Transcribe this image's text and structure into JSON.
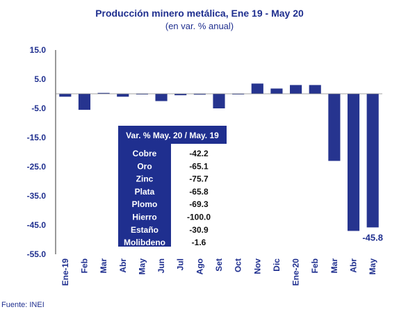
{
  "chart_data": {
    "type": "bar",
    "title": "Producción minero metálica, Ene 19 - May 20",
    "subtitle": "(en var. % anual)",
    "categories": [
      "Ene-19",
      "Feb",
      "Mar",
      "Abr",
      "May",
      "Jun",
      "Jul",
      "Ago",
      "Set",
      "Oct",
      "Nov",
      "Dic",
      "Ene-20",
      "Feb",
      "Mar",
      "Abr",
      "May"
    ],
    "values": [
      -1.0,
      -5.5,
      0.3,
      -1.0,
      -0.2,
      -2.5,
      -0.5,
      -0.3,
      -5.0,
      -0.1,
      3.5,
      1.8,
      3.0,
      3.0,
      -23.0,
      -47.0,
      -45.8
    ],
    "ylim": [
      -55,
      15
    ],
    "yticks": [
      15.0,
      5.0,
      -5.0,
      -15.0,
      -25.0,
      -35.0,
      -45.0,
      -55.0
    ],
    "ytick_labels": [
      "15.0",
      "5.0",
      "-5.0",
      "-15.0",
      "-25.0",
      "-35.0",
      "-45.0",
      "-55.0"
    ],
    "data_labels": [
      {
        "index": 16,
        "text": "-45.8"
      }
    ],
    "bar_color": "#26348f",
    "grid": false,
    "inset_table": {
      "header": "Var. % May. 20 / May. 19",
      "rows": [
        {
          "name": "Cobre",
          "value": "-42.2"
        },
        {
          "name": "Oro",
          "value": "-65.1"
        },
        {
          "name": "Zinc",
          "value": "-75.7"
        },
        {
          "name": "Plata",
          "value": "-65.8"
        },
        {
          "name": "Plomo",
          "value": "-69.3"
        },
        {
          "name": "Hierro",
          "value": "-100.0"
        },
        {
          "name": "Estaño",
          "value": "-30.9"
        },
        {
          "name": "Molibdeno",
          "value": "-1.6"
        }
      ]
    }
  },
  "source": "Fuente: INEI"
}
